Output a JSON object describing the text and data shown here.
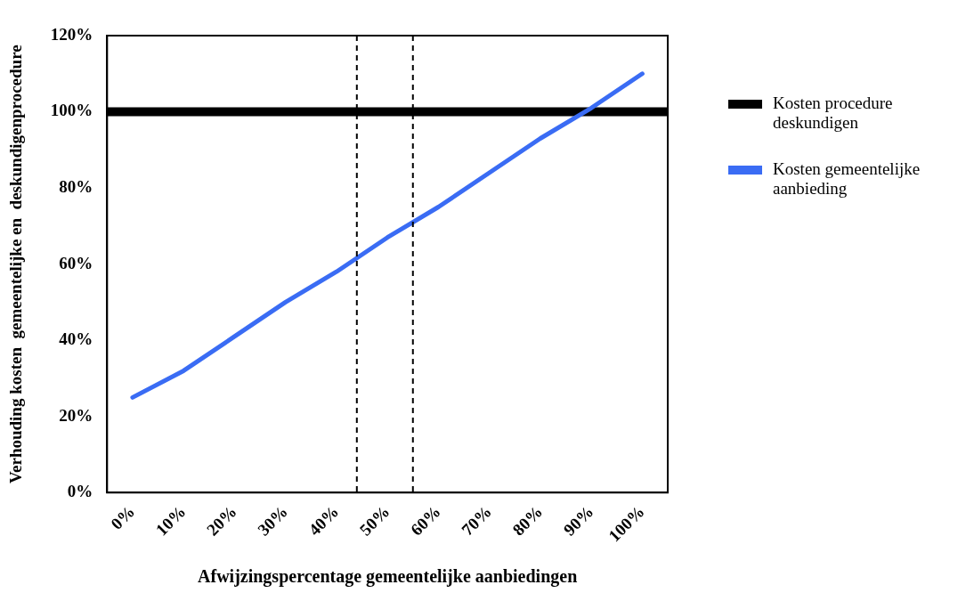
{
  "chart_data": {
    "type": "line",
    "xlabel": "Afwijzingspercentage gemeentelijke aanbiedingen",
    "ylabel": "Verhouding kosten  gemeentelijke en  deskundigenprocedure",
    "x": [
      0,
      10,
      20,
      30,
      40,
      50,
      60,
      70,
      80,
      90,
      100
    ],
    "xlim": [
      -5,
      105
    ],
    "xticks": [
      {
        "value": 0,
        "label": "0%"
      },
      {
        "value": 10,
        "label": "10%"
      },
      {
        "value": 20,
        "label": "20%"
      },
      {
        "value": 30,
        "label": "30%"
      },
      {
        "value": 40,
        "label": "40%"
      },
      {
        "value": 50,
        "label": "50%"
      },
      {
        "value": 60,
        "label": "60%"
      },
      {
        "value": 70,
        "label": "70%"
      },
      {
        "value": 80,
        "label": "80%"
      },
      {
        "value": 90,
        "label": "90%"
      },
      {
        "value": 100,
        "label": "100%"
      }
    ],
    "ylim": [
      0,
      120
    ],
    "yticks": [
      {
        "value": 0,
        "label": "0%"
      },
      {
        "value": 20,
        "label": "20%"
      },
      {
        "value": 40,
        "label": "40%"
      },
      {
        "value": 60,
        "label": "60%"
      },
      {
        "value": 80,
        "label": "80%"
      },
      {
        "value": 100,
        "label": "100%"
      },
      {
        "value": 120,
        "label": "120%"
      }
    ],
    "series": [
      {
        "name": "Kosten procedure deskundigen",
        "color": "#000000",
        "x": [
          -5,
          105
        ],
        "values": [
          100,
          100
        ]
      },
      {
        "name": "Kosten gemeentelijke aanbieding",
        "color": "#3a6cf4",
        "values": [
          25,
          32,
          41,
          50,
          58,
          67,
          75,
          84,
          93,
          101,
          110
        ]
      }
    ],
    "ref_lines": [
      {
        "axis": "x",
        "value": 44,
        "color": "#000000",
        "line_style": "dashed"
      },
      {
        "axis": "x",
        "value": 55,
        "color": "#000000",
        "line_style": "dashed"
      }
    ],
    "grid": false,
    "legend": "right",
    "marker": "none",
    "line_style": "solid"
  }
}
